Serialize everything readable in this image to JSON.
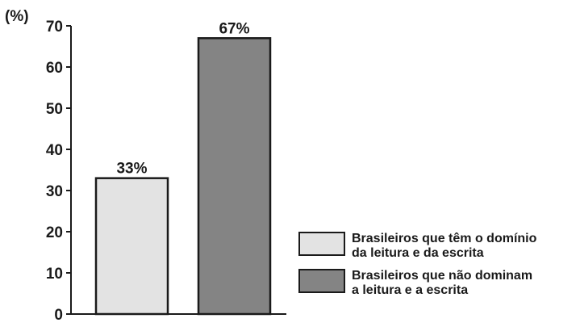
{
  "chart_data": {
    "type": "bar",
    "unit_label": "(%)",
    "ylim": [
      0,
      70
    ],
    "yticks": [
      "0",
      "10",
      "20",
      "30",
      "40",
      "50",
      "60",
      "70"
    ],
    "grid": false,
    "legend_position": "bottom-right",
    "series": [
      {
        "name": "Brasileiros que têm o domínio da leitura e da escrita",
        "name_lines": [
          "Brasileiros que têm o domínio",
          "da leitura e da escrita"
        ],
        "value": 33,
        "label": "33%",
        "color": "#e3e3e3"
      },
      {
        "name": "Brasileiros que não dominam a leitura e a escrita",
        "name_lines": [
          "Brasileiros que não dominam",
          "a leitura e a escrita"
        ],
        "value": 67,
        "label": "67%",
        "color": "#848484"
      }
    ]
  }
}
